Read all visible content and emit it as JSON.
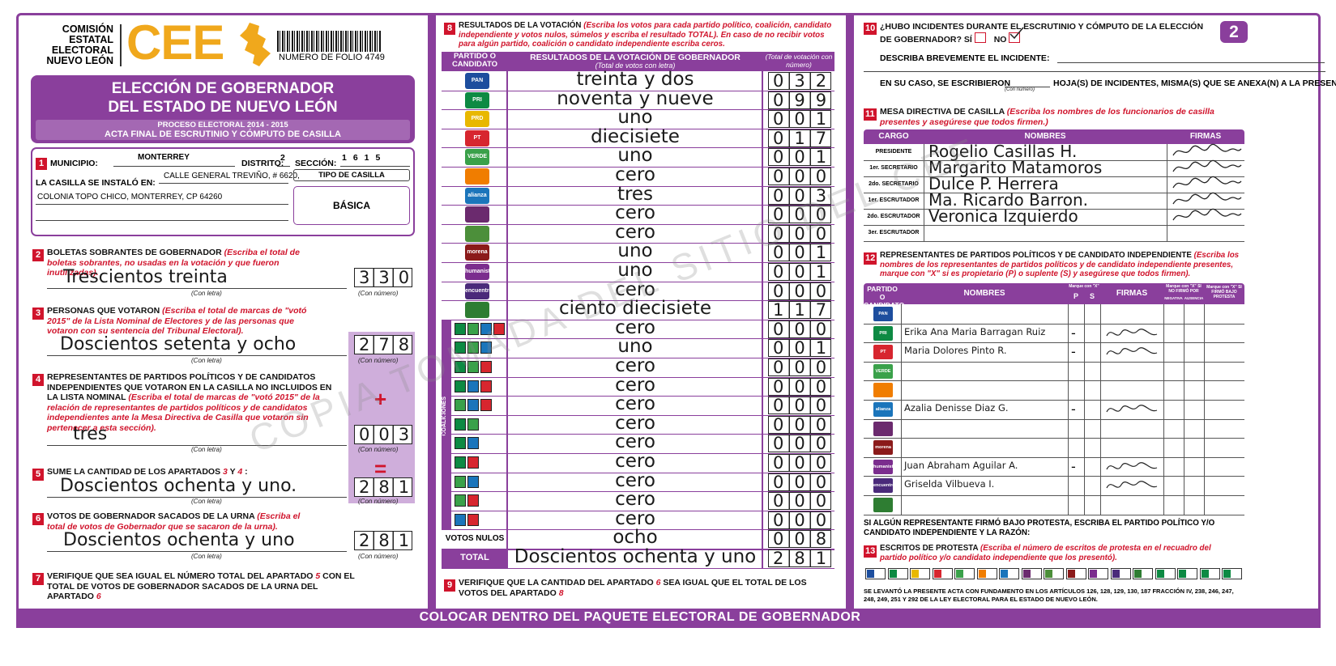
{
  "header": {
    "org": [
      "COMISIÓN",
      "ESTATAL",
      "ELECTORAL",
      "NUEVO LEÓN"
    ],
    "logo": "CEE",
    "folio": "NUMERO DE FOLIO 4749",
    "page": "2"
  },
  "title": {
    "line1": "ELECCIÓN DE GOBERNADOR",
    "line2": "DEL ESTADO DE NUEVO LEÓN",
    "process": "PROCESO ELECTORAL 2014 - 2015",
    "act": "ACTA FINAL DE ESCRUTINIO Y CÓMPUTO DE CASILLA"
  },
  "labels": {
    "con_letra": "(Con letra)",
    "con_numero": "(Con número)"
  },
  "s1": {
    "num": "1",
    "municipio_label": "MUNICIPIO:",
    "municipio": "MONTERREY",
    "distrito_label": "DISTRITO:",
    "distrito": "2",
    "seccion_label": "SECCIÓN:",
    "seccion": "1615",
    "lugar_label": "LA CASILLA SE INSTALÓ EN:",
    "lugar1": "CALLE GENERAL TREVIÑO, # 6620,",
    "lugar2": "COLONIA TOPO CHICO, MONTERREY, CP 64260",
    "tipo_label": "TIPO DE CASILLA",
    "tipo": "BÁSICA"
  },
  "s2": {
    "num": "2",
    "title": "BOLETAS SOBRANTES DE GOBERNADOR",
    "note": "(Escriba el total de boletas sobrantes, no usadas en la votación y que fueron inutilizadas).",
    "letters": "Trescientos treinta",
    "number": "330"
  },
  "s3": {
    "num": "3",
    "title": "PERSONAS QUE VOTARON",
    "note": "(Escriba el total de marcas de \"votó 2015\" de la Lista Nominal de Electores y de las personas que votaron con su sentencia del Tribunal Electoral).",
    "letters": "Doscientos setenta y ocho",
    "number": "278"
  },
  "s4": {
    "num": "4",
    "title": "REPRESENTANTES DE PARTIDOS POLÍTICOS Y DE CANDIDATOS INDEPENDIENTES QUE VOTARON EN LA CASILLA NO INCLUIDOS EN LA LISTA NOMINAL",
    "note": "(Escriba el total de marcas de \"votó 2015\" de la relación de representantes de partidos políticos y de candidatos independientes ante la Mesa Directiva de Casilla que votaron sin pertenecer a esta sección).",
    "letters": "tres",
    "number": "003",
    "sign": "+"
  },
  "s5": {
    "num": "5",
    "title": "SUME LA CANTIDAD DE LOS APARTADOS",
    "ref1": "3",
    "and": "Y",
    "ref2": "4",
    "colon": ":",
    "letters": "Doscientos ochenta y uno.",
    "number": "281",
    "sign": "="
  },
  "s6": {
    "num": "6",
    "title": "VOTOS DE GOBERNADOR SACADOS DE LA URNA",
    "note": "(Escriba el total de votos de Gobernador que se sacaron de la urna).",
    "letters": "Doscientos ochenta y uno",
    "number": "281"
  },
  "s7": {
    "num": "7",
    "text_a": "VERIFIQUE QUE SEA IGUAL EL NÚMERO TOTAL DEL APARTADO",
    "ref1": "5",
    "text_b": "CON EL TOTAL DE VOTOS DE GOBERNADOR SACADOS DE LA URNA DEL APARTADO",
    "ref2": "6"
  },
  "s8": {
    "num": "8",
    "title": "RESULTADOS DE LA VOTACIÓN",
    "note": "(Escriba los votos para cada partido político, coalición, candidato independiente y votos nulos, súmelos y escriba el resultado TOTAL).",
    "note2": "En caso de no recibir votos para algún partido, coalición o candidato independiente escriba ceros.",
    "col1": "PARTIDO O CANDIDATO",
    "col2": "RESULTADOS DE LA VOTACIÓN DE GOBERNADOR",
    "col2_note": "(Total de votos con letra)",
    "col3": "(Total de votación con número)",
    "coalitions": "COALICIONES",
    "rows": [
      {
        "logo": "PAN",
        "logo_color": "#1d4e9e",
        "letters": "treinta y dos",
        "number": "032"
      },
      {
        "logo": "PRI",
        "logo_color": "#0d8a43",
        "letters": "noventa y nueve",
        "number": "099"
      },
      {
        "logo": "PRD",
        "logo_color": "#e8b800",
        "letters": "uno",
        "number": "001"
      },
      {
        "logo": "PT",
        "logo_color": "#d7262f",
        "letters": "diecisiete",
        "number": "017"
      },
      {
        "logo": "VERDE",
        "logo_color": "#3aa14a",
        "letters": "uno",
        "number": "001"
      },
      {
        "logo_color": "#f07d00",
        "letters": "cero",
        "number": "000"
      },
      {
        "logo": "alianza",
        "logo_color": "#1b75bb",
        "letters": "tres",
        "number": "003"
      },
      {
        "logo_color": "#6b2a6e",
        "letters": "cero",
        "number": "000"
      },
      {
        "logo_color": "#4c8f3a",
        "letters": "cero",
        "number": "000"
      },
      {
        "logo": "morena",
        "logo_color": "#8b1a1a",
        "letters": "uno",
        "number": "001"
      },
      {
        "logo": "humanista",
        "logo_color": "#7b2d8e",
        "letters": "uno",
        "number": "001"
      },
      {
        "logo": "encuentro social",
        "logo_color": "#4a2a7a",
        "letters": "cero",
        "number": "000"
      },
      {
        "logo_color": "#2e7d32",
        "letters": "ciento diecisiete",
        "number": "117"
      },
      {
        "logo_colors": [
          "#0d8a43",
          "#3aa14a",
          "#1b75bb",
          "#d7262f"
        ],
        "letters": "cero",
        "number": "000"
      },
      {
        "logo_colors": [
          "#0d8a43",
          "#3aa14a",
          "#1b75bb"
        ],
        "letters": "uno",
        "number": "001"
      },
      {
        "logo_colors": [
          "#0d8a43",
          "#3aa14a",
          "#d7262f"
        ],
        "letters": "cero",
        "number": "000"
      },
      {
        "logo_colors": [
          "#0d8a43",
          "#1b75bb",
          "#d7262f"
        ],
        "letters": "cero",
        "number": "000"
      },
      {
        "logo_colors": [
          "#3aa14a",
          "#1b75bb",
          "#d7262f"
        ],
        "letters": "cero",
        "number": "000"
      },
      {
        "logo_colors": [
          "#0d8a43",
          "#3aa14a"
        ],
        "letters": "cero",
        "number": "000"
      },
      {
        "logo_colors": [
          "#0d8a43",
          "#1b75bb"
        ],
        "letters": "cero",
        "number": "000"
      },
      {
        "logo_colors": [
          "#0d8a43",
          "#d7262f"
        ],
        "letters": "cero",
        "number": "000"
      },
      {
        "logo_colors": [
          "#3aa14a",
          "#1b75bb"
        ],
        "letters": "cero",
        "number": "000"
      },
      {
        "logo_colors": [
          "#3aa14a",
          "#d7262f"
        ],
        "letters": "cero",
        "number": "000"
      },
      {
        "logo_colors": [
          "#1b75bb",
          "#d7262f"
        ],
        "letters": "cero",
        "number": "000"
      }
    ],
    "nulos_label": "VOTOS NULOS",
    "nulos": {
      "letters": "ocho",
      "number": "008"
    },
    "total_label": "TOTAL",
    "total": {
      "letters": "Doscientos ochenta y uno",
      "number": "281"
    }
  },
  "s9": {
    "num": "9",
    "text_a": "VERIFIQUE QUE LA CANTIDAD DEL APARTADO",
    "ref1": "6",
    "text_b": "SEA IGUAL QUE EL TOTAL DE LOS VOTOS DEL APARTADO",
    "ref2": "8"
  },
  "s10": {
    "num": "10",
    "question": "¿HUBO INCIDENTES DURANTE EL ESCRUTINIO Y CÓMPUTO DE LA ELECCIÓN DE GOBERNADOR?",
    "si": "SÍ",
    "no": "NO",
    "describe": "DESCRIBA BREVEMENTE EL INCIDENTE:",
    "sheets_a": "EN SU CASO, SE ESCRIBIERON",
    "sheets_b": "HOJA(S) DE INCIDENTES, MISMA(S) QUE SE ANEXA(N) A LA PRESENTE ACTA."
  },
  "s11": {
    "num": "11",
    "title": "MESA DIRECTIVA DE CASILLA",
    "note": "(Escriba los nombres de los funcionarios de casilla presentes y asegúrese que todos firmen.)",
    "col1": "CARGO",
    "col2": "NOMBRES",
    "col3": "FIRMAS",
    "rows": [
      {
        "cargo": "PRESIDENTE",
        "nombre": "Rogelio Casillas H."
      },
      {
        "cargo": "1er. SECRETARIO",
        "nombre": "Margarito Matamoros"
      },
      {
        "cargo": "2do. SECRETARIO",
        "nombre": "Dulce P. Herrera"
      },
      {
        "cargo": "1er. ESCRUTADOR",
        "nombre": "Ma. Ricardo Barron."
      },
      {
        "cargo": "2do. ESCRUTADOR",
        "nombre": "Veronica Izquierdo"
      },
      {
        "cargo": "3er. ESCRUTADOR"
      }
    ]
  },
  "s12": {
    "num": "12",
    "title": "REPRESENTANTES DE PARTIDOS POLÍTICOS Y DE CANDIDATO INDEPENDIENTE",
    "note": "(Escriba los nombres de los representantes de partidos políticos y de candidato independiente presentes, marque con \"X\" si es propietario (P) o suplente (S) y asegúrese que todos firmen).",
    "col1": "PARTIDO O CANDIDATO",
    "col2": "NOMBRES",
    "col_ps": "Marque con \"X\"",
    "p": "P",
    "s": "S",
    "col3": "FIRMAS",
    "col_no": "Marque con \"X\" SI NO FIRMÓ POR",
    "negativa": "NEGATIVA",
    "ausencia": "AUSENCIA",
    "col_protesta": "Marque con \"X\" SI FIRMÓ BAJO PROTESTA",
    "rows": [
      {
        "logo": "PAN",
        "logo_color": "#1d4e9e"
      },
      {
        "logo": "PRI",
        "logo_color": "#0d8a43",
        "nombre": "Erika Ana Maria Barragan Ruiz",
        "mark": "-"
      },
      {
        "logo": "PT",
        "logo_color": "#d7262f",
        "nombre": "Maria Dolores Pinto R.",
        "mark": "-"
      },
      {
        "logo": "VERDE",
        "logo_color": "#3aa14a"
      },
      {
        "logo_color": "#f07d00"
      },
      {
        "logo": "alianza",
        "logo_color": "#1b75bb",
        "nombre": "Azalia Denisse Diaz G.",
        "mark": "-"
      },
      {
        "logo_color": "#6b2a6e"
      },
      {
        "logo": "morena",
        "logo_color": "#8b1a1a"
      },
      {
        "logo": "humanista",
        "logo_color": "#7b2d8e",
        "nombre": "Juan Abraham Aguilar A.",
        "mark": "-"
      },
      {
        "logo": "encuentro social",
        "logo_color": "#4a2a7a",
        "nombre": "Griselda Vilbueva I."
      },
      {
        "logo_color": "#2e7d32"
      }
    ],
    "protest": "SI ALGÚN REPRESENTANTE FIRMÓ BAJO PROTESTA, ESCRIBA EL PARTIDO POLÍTICO Y/O CANDIDATO INDEPENDIENTE Y LA RAZÓN:"
  },
  "s13": {
    "num": "13",
    "title": "ESCRITOS DE PROTESTA",
    "note": "(Escriba el número de escritos de protesta en el recuadro del partido político y/o candidato independiente que los presentó).",
    "legal": "SE LEVANTÓ LA PRESENTE ACTA CON FUNDAMENTO EN LOS ARTÍCULOS 126, 128, 129, 130, 187 FRACCIÓN IV, 238, 246, 247, 248, 249, 251 Y 292 DE LA LEY ELECTORAL PARA EL ESTADO DE NUEVO LEÓN."
  },
  "footer": "COLOCAR DENTRO DEL PAQUETE ELECTORAL DE GOBERNADOR",
  "watermark": "COPIA TOMADA DEL SITIO DEL CEE"
}
